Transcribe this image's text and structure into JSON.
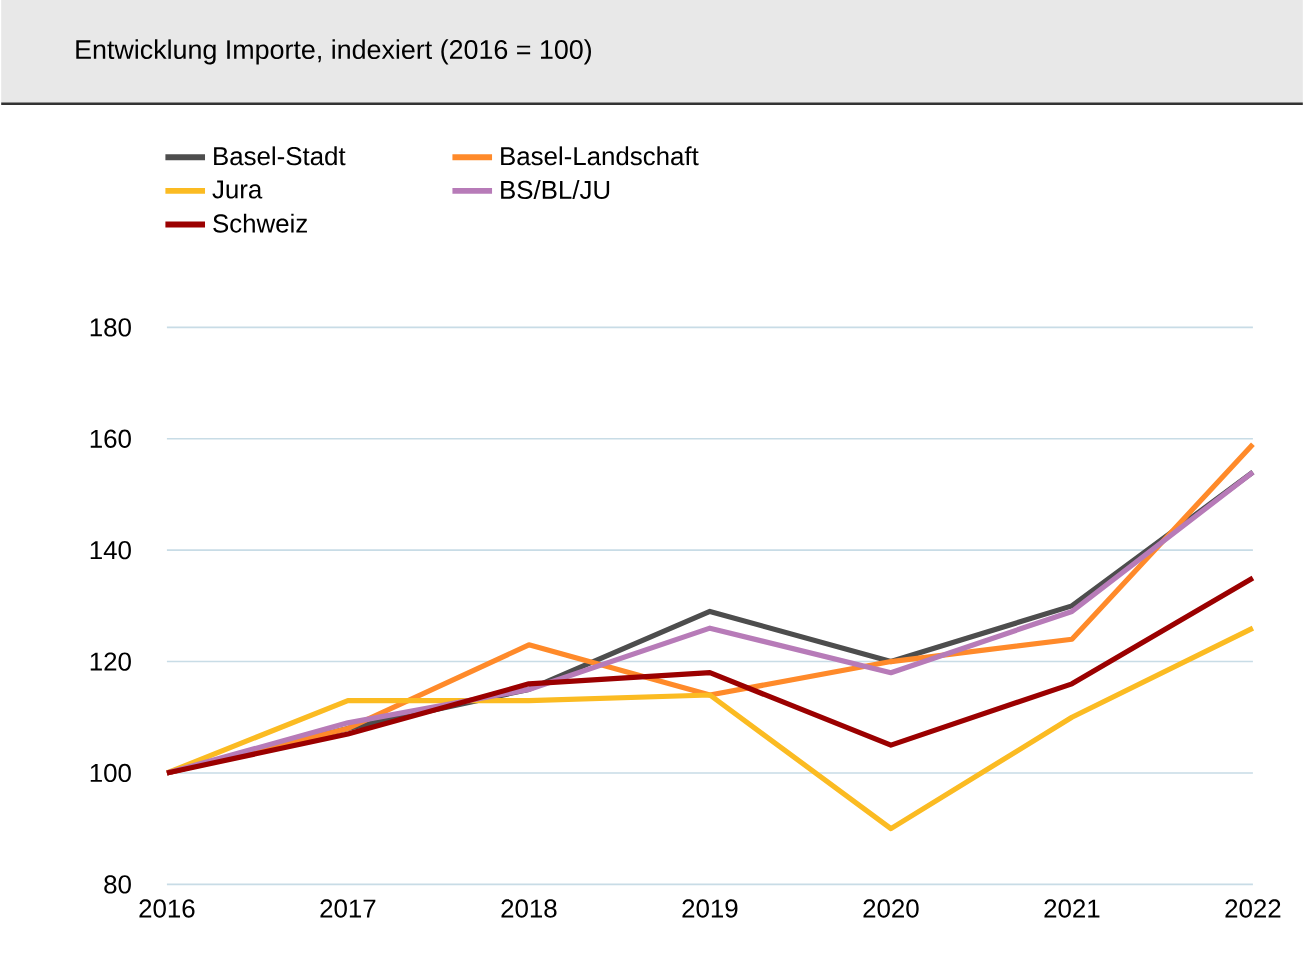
{
  "chart_data": {
    "type": "line",
    "title": "Entwicklung Importe, indexiert (2016 = 100)",
    "x": [
      2016,
      2017,
      2018,
      2019,
      2020,
      2021,
      2022
    ],
    "xlim": [
      2016,
      2022
    ],
    "xticks": [
      2016,
      2017,
      2018,
      2019,
      2020,
      2021,
      2022
    ],
    "ylim": [
      80,
      180
    ],
    "yticks": [
      80,
      100,
      120,
      140,
      160,
      180
    ],
    "grid": "y",
    "legend": "top",
    "series": [
      {
        "name": "Basel-Stadt",
        "color": "#4d4d4d",
        "values": [
          100,
          108,
          115,
          129,
          120,
          130,
          154
        ]
      },
      {
        "name": "Basel-Landschaft",
        "color": "#ff8a2a",
        "values": [
          100,
          108,
          123,
          114,
          120,
          124,
          159
        ]
      },
      {
        "name": "Jura",
        "color": "#fbbb22",
        "values": [
          100,
          113,
          113,
          114,
          90,
          110,
          126
        ]
      },
      {
        "name": "BS/BL/JU",
        "color": "#b77bb8",
        "values": [
          100,
          109,
          115,
          126,
          118,
          129,
          154
        ]
      },
      {
        "name": "Schweiz",
        "color": "#9b0000",
        "values": [
          100,
          107,
          116,
          118,
          105,
          116,
          135
        ]
      }
    ]
  }
}
